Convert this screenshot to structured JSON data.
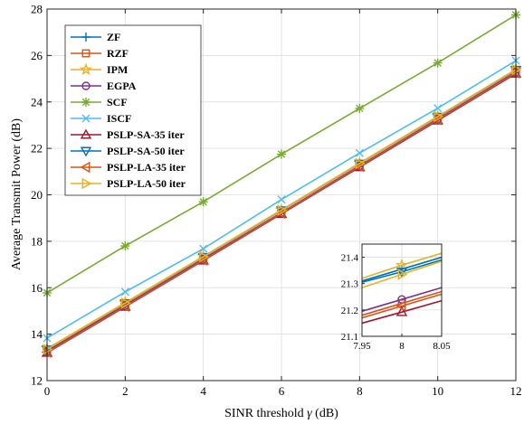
{
  "chart_data": {
    "type": "line",
    "xlabel_prefix": "SINR threshold ",
    "xlabel_symbol": "γ",
    "xlabel_suffix": " (dB)",
    "ylabel": "Average Transmit Power (dB)",
    "xlim": [
      0,
      12
    ],
    "ylim": [
      12,
      28
    ],
    "xticks": [
      "0",
      "2",
      "4",
      "6",
      "8",
      "10",
      "12"
    ],
    "yticks": [
      "12",
      "14",
      "16",
      "18",
      "20",
      "22",
      "24",
      "26",
      "28"
    ],
    "grid": true,
    "legend_position": "top-left",
    "x": [
      0,
      2,
      4,
      6,
      8,
      10,
      12
    ],
    "series": [
      {
        "name": "ZF",
        "color": "#0072bd",
        "marker": "plus",
        "values": [
          13.36,
          15.33,
          17.32,
          19.33,
          21.35,
          23.36,
          25.38
        ]
      },
      {
        "name": "RZF",
        "color": "#d95319",
        "marker": "square",
        "values": [
          13.25,
          15.23,
          17.22,
          19.22,
          21.24,
          23.26,
          25.27
        ]
      },
      {
        "name": "IPM",
        "color": "#edb120",
        "marker": "star",
        "values": [
          13.38,
          15.36,
          17.35,
          19.35,
          21.37,
          23.38,
          25.4
        ]
      },
      {
        "name": "EGPA",
        "color": "#7e2f8e",
        "marker": "circle",
        "values": [
          13.27,
          15.25,
          17.24,
          19.23,
          21.25,
          23.27,
          25.29
        ]
      },
      {
        "name": "SCF",
        "color": "#77ac30",
        "marker": "asterisk",
        "values": [
          15.78,
          17.8,
          19.7,
          21.75,
          23.72,
          25.68,
          27.75
        ]
      },
      {
        "name": "ISCF",
        "color": "#4dbeee",
        "marker": "x",
        "values": [
          13.83,
          15.82,
          17.68,
          19.8,
          21.8,
          23.73,
          25.78
        ]
      },
      {
        "name": "PSLP-SA-35 iter",
        "color": "#a2142f",
        "marker": "triangle-up",
        "values": [
          13.2,
          15.18,
          17.17,
          19.18,
          21.19,
          23.2,
          25.22
        ]
      },
      {
        "name": "PSLP-SA-50 iter",
        "color": "#0072bd",
        "marker": "triangle-down",
        "values": [
          13.34,
          15.33,
          17.32,
          19.33,
          21.34,
          23.36,
          25.38
        ]
      },
      {
        "name": "PSLP-LA-35 iter",
        "color": "#d95319",
        "marker": "triangle-left",
        "values": [
          13.22,
          15.2,
          17.19,
          19.2,
          21.22,
          23.23,
          25.25
        ]
      },
      {
        "name": "PSLP-LA-50 iter",
        "color": "#edb120",
        "marker": "triangle-right",
        "values": [
          13.35,
          15.34,
          17.33,
          19.34,
          21.35,
          23.37,
          25.39
        ]
      }
    ],
    "inset": {
      "xlim": [
        7.95,
        8.05
      ],
      "ylim": [
        21.1,
        21.45
      ],
      "xticks": [
        "7.95",
        "8",
        "8.05"
      ],
      "yticks": [
        "21.1",
        "21.2",
        "21.3",
        "21.4"
      ],
      "x": [
        7.95,
        8,
        8.05
      ],
      "series": [
        {
          "ref": 0,
          "values": [
            21.31,
            21.355,
            21.4
          ]
        },
        {
          "ref": 1,
          "values": [
            21.18,
            21.225,
            21.27
          ]
        },
        {
          "ref": 2,
          "values": [
            21.32,
            21.37,
            21.415
          ]
        },
        {
          "ref": 3,
          "values": [
            21.195,
            21.24,
            21.285
          ]
        },
        {
          "ref": 6,
          "values": [
            21.15,
            21.192,
            21.235
          ]
        },
        {
          "ref": 7,
          "values": [
            21.305,
            21.345,
            21.39
          ]
        },
        {
          "ref": 8,
          "values": [
            21.17,
            21.215,
            21.26
          ]
        },
        {
          "ref": 9,
          "values": [
            21.285,
            21.335,
            21.385
          ]
        }
      ]
    }
  }
}
